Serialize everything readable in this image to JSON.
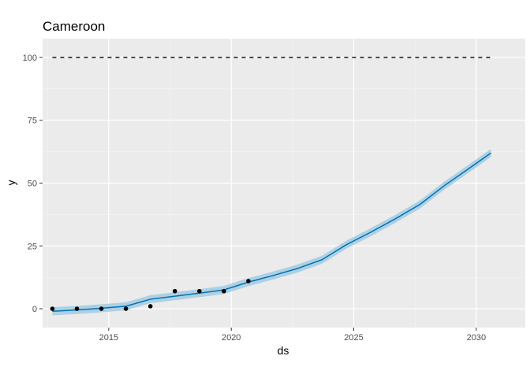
{
  "chart_data": {
    "type": "line",
    "title": "Cameroon",
    "xlabel": "ds",
    "ylabel": "y",
    "xlim": [
      2012.3,
      2032.0
    ],
    "ylim": [
      -7.5,
      107.5
    ],
    "x_ticks": [
      2015,
      2020,
      2025,
      2030
    ],
    "x_tick_labels": [
      "2015",
      "2020",
      "2025",
      "2030"
    ],
    "y_ticks": [
      0,
      25,
      50,
      75,
      100
    ],
    "y_tick_labels": [
      "0",
      "25",
      "50",
      "75",
      "100"
    ],
    "grid": true,
    "background": "#ebebeb",
    "observed_points": {
      "x": [
        2012.7,
        2013.7,
        2014.7,
        2015.7,
        2016.7,
        2017.7,
        2018.7,
        2019.7,
        2020.7
      ],
      "y": [
        0,
        0,
        0,
        0,
        1,
        7,
        7,
        7,
        11
      ]
    },
    "forecast_line": {
      "x": [
        2012.7,
        2013.7,
        2014.7,
        2015.7,
        2016.7,
        2017.7,
        2018.7,
        2019.7,
        2020.7,
        2021.7,
        2022.7,
        2023.7,
        2024.7,
        2025.7,
        2026.7,
        2027.7,
        2028.7,
        2029.7,
        2030.6
      ],
      "y": [
        -1,
        -0.5,
        0.2,
        1.0,
        3.8,
        5.0,
        6.2,
        7.5,
        10.6,
        13.2,
        16.0,
        19.5,
        25.5,
        30.5,
        35.8,
        41.5,
        49.0,
        55.8,
        62.0
      ],
      "color": "#0072b2",
      "band_color": "#a6cde3",
      "band_halfwidth": 1.6
    },
    "cap_line": {
      "y": 100,
      "x_start": 2012.7,
      "x_end": 2030.6,
      "style": "dashed"
    }
  }
}
